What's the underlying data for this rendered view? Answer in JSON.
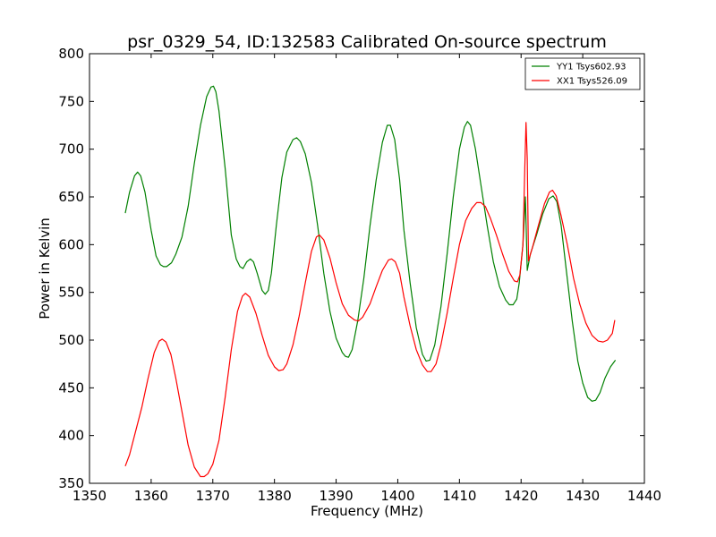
{
  "chart_data": {
    "type": "line",
    "title": "psr_0329_54, ID:132583 Calibrated On-source spectrum",
    "xlabel": "Frequency (MHz)",
    "ylabel": "Power in Kelvin",
    "xlim": [
      1350,
      1440
    ],
    "ylim": [
      350,
      800
    ],
    "xticks": [
      1350,
      1360,
      1370,
      1380,
      1390,
      1400,
      1410,
      1420,
      1430,
      1440
    ],
    "yticks": [
      350,
      400,
      450,
      500,
      550,
      600,
      650,
      700,
      750,
      800
    ],
    "grid": false,
    "legend_position": "top-right",
    "series": [
      {
        "name": "YY1 Tsys602.93",
        "color": "#008000",
        "points": [
          [
            1355.8,
            633
          ],
          [
            1356.5,
            655
          ],
          [
            1357.3,
            672
          ],
          [
            1357.8,
            676
          ],
          [
            1358.3,
            672
          ],
          [
            1359,
            655
          ],
          [
            1360,
            615
          ],
          [
            1360.8,
            588
          ],
          [
            1361.5,
            579
          ],
          [
            1362,
            577
          ],
          [
            1362.5,
            577
          ],
          [
            1363.3,
            581
          ],
          [
            1364,
            590
          ],
          [
            1365,
            608
          ],
          [
            1366,
            640
          ],
          [
            1367,
            685
          ],
          [
            1368,
            725
          ],
          [
            1369,
            755
          ],
          [
            1369.7,
            765
          ],
          [
            1370.1,
            766
          ],
          [
            1370.5,
            760
          ],
          [
            1371,
            740
          ],
          [
            1372,
            680
          ],
          [
            1373,
            610
          ],
          [
            1373.8,
            585
          ],
          [
            1374.4,
            577
          ],
          [
            1374.9,
            575
          ],
          [
            1375.5,
            582
          ],
          [
            1376.1,
            585
          ],
          [
            1376.6,
            582
          ],
          [
            1377.2,
            570
          ],
          [
            1378,
            552
          ],
          [
            1378.5,
            548
          ],
          [
            1379,
            552
          ],
          [
            1379.5,
            570
          ],
          [
            1380.3,
            620
          ],
          [
            1381.2,
            670
          ],
          [
            1382,
            697
          ],
          [
            1383,
            710
          ],
          [
            1383.6,
            712
          ],
          [
            1384.2,
            708
          ],
          [
            1385,
            695
          ],
          [
            1386,
            665
          ],
          [
            1387,
            620
          ],
          [
            1388,
            570
          ],
          [
            1389,
            530
          ],
          [
            1390,
            502
          ],
          [
            1391,
            487
          ],
          [
            1391.5,
            483
          ],
          [
            1392,
            482
          ],
          [
            1392.6,
            490
          ],
          [
            1393.5,
            520
          ],
          [
            1394.5,
            565
          ],
          [
            1395.5,
            620
          ],
          [
            1396.5,
            668
          ],
          [
            1397.5,
            707
          ],
          [
            1398.3,
            725
          ],
          [
            1398.8,
            725
          ],
          [
            1399.5,
            710
          ],
          [
            1400.3,
            668
          ],
          [
            1401,
            615
          ],
          [
            1402,
            560
          ],
          [
            1403,
            513
          ],
          [
            1404,
            485
          ],
          [
            1404.6,
            478
          ],
          [
            1405.2,
            479
          ],
          [
            1406,
            495
          ],
          [
            1407,
            535
          ],
          [
            1408,
            590
          ],
          [
            1409,
            650
          ],
          [
            1410,
            700
          ],
          [
            1410.8,
            723
          ],
          [
            1411.3,
            729
          ],
          [
            1411.8,
            725
          ],
          [
            1412.6,
            700
          ],
          [
            1413.5,
            662
          ],
          [
            1414.5,
            620
          ],
          [
            1415.5,
            582
          ],
          [
            1416.5,
            556
          ],
          [
            1417.5,
            542
          ],
          [
            1418.1,
            537
          ],
          [
            1418.7,
            537
          ],
          [
            1419.3,
            543
          ],
          [
            1419.7,
            560
          ],
          [
            1420.3,
            600
          ],
          [
            1420.7,
            650
          ],
          [
            1421,
            573
          ],
          [
            1421.5,
            590
          ],
          [
            1422.5,
            610
          ],
          [
            1423.5,
            632
          ],
          [
            1424.5,
            648
          ],
          [
            1425.2,
            651
          ],
          [
            1425.8,
            645
          ],
          [
            1426.5,
            620
          ],
          [
            1427.3,
            575
          ],
          [
            1428.3,
            520
          ],
          [
            1429.2,
            478
          ],
          [
            1430,
            455
          ],
          [
            1430.8,
            440
          ],
          [
            1431.5,
            436
          ],
          [
            1432.1,
            437
          ],
          [
            1432.8,
            445
          ],
          [
            1433.6,
            460
          ],
          [
            1434.5,
            472
          ],
          [
            1435.3,
            479
          ]
        ]
      },
      {
        "name": "XX1 Tsys526.09",
        "color": "#ff0000",
        "points": [
          [
            1355.8,
            368
          ],
          [
            1356.5,
            380
          ],
          [
            1357.5,
            405
          ],
          [
            1358.5,
            430
          ],
          [
            1359.5,
            460
          ],
          [
            1360.5,
            487
          ],
          [
            1361.3,
            499
          ],
          [
            1361.8,
            501
          ],
          [
            1362.4,
            498
          ],
          [
            1363.2,
            485
          ],
          [
            1364,
            460
          ],
          [
            1365,
            425
          ],
          [
            1366,
            390
          ],
          [
            1367,
            367
          ],
          [
            1368,
            357
          ],
          [
            1368.6,
            357
          ],
          [
            1369.2,
            360
          ],
          [
            1370,
            370
          ],
          [
            1371,
            395
          ],
          [
            1372,
            440
          ],
          [
            1373,
            490
          ],
          [
            1374,
            530
          ],
          [
            1374.8,
            546
          ],
          [
            1375.3,
            549
          ],
          [
            1376,
            545
          ],
          [
            1377,
            528
          ],
          [
            1378,
            505
          ],
          [
            1379,
            484
          ],
          [
            1380,
            472
          ],
          [
            1380.7,
            468
          ],
          [
            1381.4,
            469
          ],
          [
            1382,
            475
          ],
          [
            1383,
            495
          ],
          [
            1384,
            525
          ],
          [
            1385,
            560
          ],
          [
            1386,
            593
          ],
          [
            1386.8,
            608
          ],
          [
            1387.3,
            610
          ],
          [
            1388,
            605
          ],
          [
            1389,
            586
          ],
          [
            1390,
            560
          ],
          [
            1391,
            538
          ],
          [
            1392,
            526
          ],
          [
            1393,
            521
          ],
          [
            1393.6,
            520
          ],
          [
            1394.3,
            524
          ],
          [
            1395.5,
            538
          ],
          [
            1396.5,
            556
          ],
          [
            1397.5,
            573
          ],
          [
            1398.5,
            584
          ],
          [
            1399,
            585
          ],
          [
            1399.6,
            582
          ],
          [
            1400.3,
            570
          ],
          [
            1401,
            545
          ],
          [
            1402,
            515
          ],
          [
            1403,
            490
          ],
          [
            1404,
            474
          ],
          [
            1404.8,
            467
          ],
          [
            1405.4,
            467
          ],
          [
            1406.2,
            475
          ],
          [
            1407,
            495
          ],
          [
            1408,
            528
          ],
          [
            1409,
            565
          ],
          [
            1410,
            600
          ],
          [
            1411,
            625
          ],
          [
            1412,
            638
          ],
          [
            1412.8,
            644
          ],
          [
            1413.5,
            644
          ],
          [
            1414.2,
            640
          ],
          [
            1415,
            628
          ],
          [
            1416,
            610
          ],
          [
            1417,
            590
          ],
          [
            1418,
            572
          ],
          [
            1418.9,
            562
          ],
          [
            1419.4,
            561
          ],
          [
            1419.8,
            568
          ],
          [
            1420.3,
            600
          ],
          [
            1420.6,
            680
          ],
          [
            1420.8,
            728
          ],
          [
            1421,
            690
          ],
          [
            1421.2,
            583
          ],
          [
            1421.8,
            596
          ],
          [
            1422.8,
            620
          ],
          [
            1423.8,
            643
          ],
          [
            1424.6,
            655
          ],
          [
            1425.1,
            657
          ],
          [
            1425.7,
            651
          ],
          [
            1426.5,
            630
          ],
          [
            1427.5,
            600
          ],
          [
            1428.5,
            565
          ],
          [
            1429.5,
            538
          ],
          [
            1430.5,
            518
          ],
          [
            1431.5,
            505
          ],
          [
            1432.5,
            499
          ],
          [
            1433.3,
            498
          ],
          [
            1434,
            500
          ],
          [
            1434.8,
            507
          ],
          [
            1435.2,
            521
          ]
        ]
      }
    ]
  }
}
